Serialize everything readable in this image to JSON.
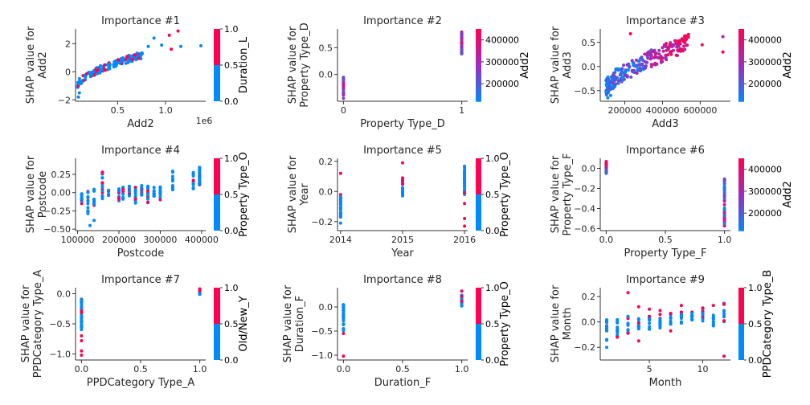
{
  "colors": {
    "low": "#008afb",
    "high": "#ff0052",
    "mid": "#9c2dbf"
  },
  "chart_data": [
    {
      "type": "scatter",
      "title": "Importance #1",
      "xlabel": "Add2",
      "ylabel": [
        "SHAP value for",
        "Add2"
      ],
      "xlim": [
        60000,
        1420000
      ],
      "ylim": [
        -2.1,
        3.05
      ],
      "xticks": [
        {
          "v": 500000,
          "t": "0.5"
        },
        {
          "v": 1000000,
          "t": "1.0"
        }
      ],
      "xoffset": "1e6",
      "yticks": [
        {
          "v": -2,
          "t": "−2"
        },
        {
          "v": 0,
          "t": "0"
        },
        {
          "v": 2,
          "t": "2"
        }
      ],
      "colorbar": {
        "label": "Duration_L",
        "mode": "binary",
        "ticks": [
          {
            "v": 0,
            "t": "0.0"
          },
          {
            "v": 0.5,
            "t": "0.5"
          },
          {
            "v": 1,
            "t": "1.0"
          }
        ],
        "range": [
          0,
          1
        ]
      },
      "gen": {
        "kind": "curve",
        "x0": 80000,
        "x1": 760000,
        "n": 180,
        "cmin": 0,
        "cmax": 1,
        "binary": true,
        "pHigh": 0.2
      },
      "points": [
        [
          820000,
          1.8,
          0
        ],
        [
          880000,
          2.4,
          0
        ],
        [
          960000,
          1.9,
          0
        ],
        [
          1040000,
          2.6,
          1
        ],
        [
          1060000,
          1.6,
          1
        ],
        [
          1130000,
          2.9,
          1
        ],
        [
          1160000,
          1.8,
          0
        ],
        [
          1370000,
          1.85,
          0
        ],
        [
          680000,
          1.2,
          1
        ],
        [
          600000,
          1.1,
          1
        ],
        [
          90000,
          -1.8,
          0
        ],
        [
          100000,
          -1.5,
          0
        ]
      ]
    },
    {
      "type": "scatter",
      "title": "Importance #2",
      "xlabel": "Property Type_D",
      "ylabel": [
        "SHAP value for",
        "Property Type_D"
      ],
      "xlim": [
        -0.05,
        1.05
      ],
      "ylim": [
        -0.5,
        0.85
      ],
      "xticks": [
        {
          "v": 0,
          "t": "0"
        },
        {
          "v": 1,
          "t": "1"
        }
      ],
      "yticks": [
        {
          "v": 0,
          "t": "0.0"
        },
        {
          "v": 0.5,
          "t": "0.5"
        }
      ],
      "colorbar": {
        "label": "Add2",
        "mode": "gradient",
        "ticks": [
          {
            "v": 200000,
            "t": "200000"
          },
          {
            "v": 300000,
            "t": "300000"
          },
          {
            "v": 400000,
            "t": "400000"
          }
        ],
        "range": [
          120000,
          450000
        ]
      },
      "gen": {
        "kind": "columns",
        "cols": [
          {
            "x": 0,
            "y0": -0.45,
            "y1": -0.05,
            "n": 30
          },
          {
            "x": 1,
            "y0": 0.35,
            "y1": 0.8,
            "n": 40
          }
        ],
        "cmin": 0.2,
        "cmax": 0.9
      },
      "points": []
    },
    {
      "type": "scatter",
      "title": "Importance #3",
      "xlabel": "Add3",
      "ylabel": [
        "SHAP value for",
        "Add3"
      ],
      "xlim": [
        70000,
        760000
      ],
      "ylim": [
        -0.72,
        0.78
      ],
      "xticks": [
        {
          "v": 200000,
          "t": "200000"
        },
        {
          "v": 400000,
          "t": "400000"
        },
        {
          "v": 600000,
          "t": "600000"
        }
      ],
      "yticks": [
        {
          "v": -0.5,
          "t": "−0.5"
        },
        {
          "v": 0,
          "t": "0.0"
        },
        {
          "v": 0.5,
          "t": "0.5"
        }
      ],
      "colorbar": {
        "label": "Add2",
        "mode": "gradient",
        "ticks": [
          {
            "v": 200000,
            "t": "200000"
          },
          {
            "v": 300000,
            "t": "300000"
          },
          {
            "v": 400000,
            "t": "400000"
          }
        ],
        "range": [
          120000,
          450000
        ]
      },
      "gen": {
        "kind": "cloud",
        "x0": 100000,
        "x1": 540000,
        "yA": -0.45,
        "yB": 0.5,
        "spread": 0.18,
        "n": 260,
        "cmin": 0,
        "cmax": 1
      },
      "points": [
        [
          110000,
          -0.65,
          0
        ],
        [
          125000,
          -0.6,
          0
        ],
        [
          230000,
          0.68,
          1
        ],
        [
          720000,
          0.62,
          0.6
        ],
        [
          720000,
          0.3,
          1
        ],
        [
          610000,
          0.45,
          0.9
        ]
      ]
    },
    {
      "type": "scatter",
      "title": "Importance #4",
      "xlabel": "Postcode",
      "ylabel": [
        "SHAP value for",
        "Postcode"
      ],
      "xlim": [
        95000,
        410000
      ],
      "ylim": [
        -0.52,
        0.47
      ],
      "xticks": [
        {
          "v": 100000,
          "t": "100000"
        },
        {
          "v": 200000,
          "t": "200000"
        },
        {
          "v": 300000,
          "t": "300000"
        },
        {
          "v": 400000,
          "t": "400000"
        }
      ],
      "yticks": [
        {
          "v": -0.5,
          "t": "−0.50"
        },
        {
          "v": -0.25,
          "t": "−0.25"
        },
        {
          "v": 0,
          "t": "0.00"
        },
        {
          "v": 0.25,
          "t": "0.25"
        }
      ],
      "colorbar": {
        "label": "Property Type_O",
        "mode": "binary",
        "ticks": [
          {
            "v": 0,
            "t": "0.0"
          },
          {
            "v": 0.5,
            "t": "0.5"
          },
          {
            "v": 1,
            "t": "1.0"
          }
        ],
        "range": [
          0,
          1
        ]
      },
      "gen": {
        "kind": "columns",
        "cols": [
          {
            "x": 110000,
            "y0": -0.15,
            "y1": 0.02,
            "n": 12
          },
          {
            "x": 125000,
            "y0": -0.35,
            "y1": 0.02,
            "n": 14
          },
          {
            "x": 140000,
            "y0": -0.2,
            "y1": 0.05,
            "n": 12
          },
          {
            "x": 160000,
            "y0": -0.1,
            "y1": 0.3,
            "n": 18
          },
          {
            "x": 175000,
            "y0": -0.05,
            "y1": 0.05,
            "n": 8
          },
          {
            "x": 200000,
            "y0": -0.15,
            "y1": 0.08,
            "n": 16
          },
          {
            "x": 210000,
            "y0": -0.1,
            "y1": 0.08,
            "n": 14
          },
          {
            "x": 225000,
            "y0": -0.05,
            "y1": 0.1,
            "n": 12
          },
          {
            "x": 240000,
            "y0": -0.15,
            "y1": 0.08,
            "n": 16
          },
          {
            "x": 255000,
            "y0": -0.05,
            "y1": 0.1,
            "n": 14
          },
          {
            "x": 270000,
            "y0": -0.15,
            "y1": 0.1,
            "n": 18
          },
          {
            "x": 285000,
            "y0": -0.05,
            "y1": 0.08,
            "n": 12
          },
          {
            "x": 300000,
            "y0": -0.1,
            "y1": 0.08,
            "n": 14
          },
          {
            "x": 330000,
            "y0": 0.0,
            "y1": 0.35,
            "n": 14
          },
          {
            "x": 380000,
            "y0": 0.05,
            "y1": 0.28,
            "n": 14
          },
          {
            "x": 395000,
            "y0": 0.1,
            "y1": 0.35,
            "n": 30
          }
        ],
        "cmin": 0,
        "cmax": 1,
        "binary": true,
        "pHigh": 0.2
      },
      "points": [
        [
          130000,
          -0.45,
          0
        ],
        [
          160000,
          0.28,
          1
        ],
        [
          140000,
          -0.38,
          0
        ]
      ]
    },
    {
      "type": "scatter",
      "title": "Importance #5",
      "xlabel": "Year",
      "ylabel": [
        "SHAP value for",
        "Year"
      ],
      "xlim": [
        2013.95,
        2016.05
      ],
      "ylim": [
        -0.26,
        0.22
      ],
      "xticks": [
        {
          "v": 2014,
          "t": "2014"
        },
        {
          "v": 2015,
          "t": "2015"
        },
        {
          "v": 2016,
          "t": "2016"
        }
      ],
      "yticks": [
        {
          "v": -0.2,
          "t": "−0.2"
        },
        {
          "v": 0,
          "t": "0.0"
        },
        {
          "v": 0.2,
          "t": "0.2"
        }
      ],
      "colorbar": {
        "label": "Property Type_O",
        "mode": "binary",
        "ticks": [
          {
            "v": 0,
            "t": "0.0"
          },
          {
            "v": 0.5,
            "t": "0.5"
          },
          {
            "v": 1,
            "t": "1.0"
          }
        ],
        "range": [
          0,
          1
        ]
      },
      "gen": {
        "kind": "columns",
        "cols": [
          {
            "x": 2014,
            "y0": -0.17,
            "y1": -0.02,
            "n": 30
          },
          {
            "x": 2015,
            "y0": -0.04,
            "y1": 0.08,
            "n": 25
          },
          {
            "x": 2016,
            "y0": -0.02,
            "y1": 0.17,
            "n": 40
          }
        ],
        "cmin": 0,
        "cmax": 1,
        "binary": true,
        "pHigh": 0.12
      },
      "points": [
        [
          2014,
          0.12,
          1
        ],
        [
          2015,
          0.19,
          1
        ],
        [
          2015,
          0.09,
          1
        ],
        [
          2016,
          -0.23,
          1
        ],
        [
          2016,
          -0.18,
          1
        ],
        [
          2016,
          -0.08,
          1
        ],
        [
          2014,
          -0.21,
          0
        ]
      ]
    },
    {
      "type": "scatter",
      "title": "Importance #6",
      "xlabel": "Property Type_F",
      "ylabel": [
        "SHAP value for",
        "Property Type_F"
      ],
      "xlim": [
        -0.05,
        1.05
      ],
      "ylim": [
        -0.62,
        0.1
      ],
      "xticks": [
        {
          "v": 0,
          "t": "0.0"
        },
        {
          "v": 0.5,
          "t": "0.5"
        },
        {
          "v": 1,
          "t": "1.0"
        }
      ],
      "yticks": [
        {
          "v": -0.6,
          "t": "−0.6"
        },
        {
          "v": -0.4,
          "t": "−0.4"
        },
        {
          "v": -0.2,
          "t": "−0.2"
        },
        {
          "v": 0,
          "t": "0.0"
        }
      ],
      "colorbar": {
        "label": "Add2",
        "mode": "gradient",
        "ticks": [
          {
            "v": 200000,
            "t": "200000"
          },
          {
            "v": 300000,
            "t": "300000"
          },
          {
            "v": 400000,
            "t": "400000"
          }
        ],
        "range": [
          120000,
          450000
        ]
      },
      "gen": {
        "kind": "columns",
        "cols": [
          {
            "x": 0,
            "y0": -0.05,
            "y1": 0.08,
            "n": 30
          },
          {
            "x": 1,
            "y0": -0.58,
            "y1": -0.1,
            "n": 45
          }
        ],
        "cmin": 0,
        "cmax": 1
      },
      "points": []
    },
    {
      "type": "scatter",
      "title": "Importance #7",
      "xlabel": "PPDCategory Type_A",
      "ylabel": [
        "SHAP value for",
        "PPDCategory Type_A"
      ],
      "xlim": [
        -0.05,
        1.05
      ],
      "ylim": [
        -1.1,
        0.1
      ],
      "xticks": [
        {
          "v": 0,
          "t": "0.0"
        },
        {
          "v": 0.5,
          "t": "0.5"
        },
        {
          "v": 1,
          "t": "1.0"
        }
      ],
      "yticks": [
        {
          "v": -1,
          "t": "−1.0"
        },
        {
          "v": -0.5,
          "t": "−0.5"
        },
        {
          "v": 0,
          "t": "0.0"
        }
      ],
      "colorbar": {
        "label": "Old/New_Y",
        "mode": "binary",
        "ticks": [
          {
            "v": 0,
            "t": "0.0"
          },
          {
            "v": 0.5,
            "t": "0.5"
          },
          {
            "v": 1,
            "t": "1.0"
          }
        ],
        "range": [
          0,
          1
        ]
      },
      "gen": {
        "kind": "columns",
        "cols": [
          {
            "x": 0,
            "y0": -0.6,
            "y1": -0.08,
            "n": 45
          },
          {
            "x": 1,
            "y0": -0.02,
            "y1": 0.08,
            "n": 14
          }
        ],
        "cmin": 0,
        "cmax": 1,
        "binary": true,
        "pHigh": 0.1
      },
      "points": [
        [
          0,
          -1.02,
          1
        ],
        [
          0,
          -0.95,
          1
        ],
        [
          0,
          -0.78,
          1
        ],
        [
          0,
          -0.7,
          1
        ],
        [
          1,
          0.08,
          1
        ],
        [
          1,
          0.05,
          1
        ]
      ]
    },
    {
      "type": "scatter",
      "title": "Importance #8",
      "xlabel": "Duration_F",
      "ylabel": [
        "SHAP value for",
        "Duration_F"
      ],
      "xlim": [
        -0.05,
        1.05
      ],
      "ylim": [
        -1.1,
        0.4
      ],
      "xticks": [
        {
          "v": 0,
          "t": "0.0"
        },
        {
          "v": 0.5,
          "t": "0.5"
        },
        {
          "v": 1,
          "t": "1.0"
        }
      ],
      "yticks": [
        {
          "v": -1,
          "t": "−1.0"
        },
        {
          "v": -0.5,
          "t": "−0.5"
        },
        {
          "v": 0,
          "t": "0.0"
        }
      ],
      "colorbar": {
        "label": "Property Type_O",
        "mode": "binary",
        "ticks": [
          {
            "v": 0,
            "t": "0.0"
          },
          {
            "v": 0.5,
            "t": "0.5"
          },
          {
            "v": 1,
            "t": "1.0"
          }
        ],
        "range": [
          0,
          1
        ]
      },
      "gen": {
        "kind": "columns",
        "cols": [
          {
            "x": 0,
            "y0": -0.5,
            "y1": 0.05,
            "n": 40
          },
          {
            "x": 1,
            "y0": 0.0,
            "y1": 0.25,
            "n": 20
          }
        ],
        "cmin": 0,
        "cmax": 1,
        "binary": true,
        "pHigh": 0.05
      },
      "points": [
        [
          0,
          -1.02,
          1
        ],
        [
          0,
          -0.55,
          1
        ],
        [
          1,
          0.33,
          1
        ],
        [
          1,
          0.22,
          1
        ],
        [
          1,
          0.12,
          1
        ]
      ]
    },
    {
      "type": "scatter",
      "title": "Importance #9",
      "xlabel": "Month",
      "ylabel": [
        "SHAP value for",
        "Month"
      ],
      "xlim": [
        0.4,
        12.6
      ],
      "ylim": [
        -0.3,
        0.27
      ],
      "xticks": [
        {
          "v": 5,
          "t": "5"
        },
        {
          "v": 10,
          "t": "10"
        }
      ],
      "yticks": [
        {
          "v": -0.2,
          "t": "−0.2"
        },
        {
          "v": 0,
          "t": "0.0"
        },
        {
          "v": 0.2,
          "t": "0.2"
        }
      ],
      "colorbar": {
        "label": "PPDCategory Type_B",
        "mode": "binary",
        "ticks": [
          {
            "v": 0,
            "t": "0.0"
          },
          {
            "v": 0.5,
            "t": "0.5"
          },
          {
            "v": 1,
            "t": "1.0"
          }
        ],
        "range": [
          0,
          1
        ]
      },
      "gen": {
        "kind": "columns",
        "cols": [
          {
            "x": 1,
            "y0": -0.15,
            "y1": 0.03,
            "n": 14
          },
          {
            "x": 2,
            "y0": -0.12,
            "y1": 0.02,
            "n": 14
          },
          {
            "x": 3,
            "y0": -0.1,
            "y1": 0.05,
            "n": 14
          },
          {
            "x": 4,
            "y0": -0.08,
            "y1": 0.03,
            "n": 14
          },
          {
            "x": 5,
            "y0": -0.06,
            "y1": 0.05,
            "n": 14
          },
          {
            "x": 6,
            "y0": -0.05,
            "y1": 0.06,
            "n": 14
          },
          {
            "x": 7,
            "y0": -0.02,
            "y1": 0.07,
            "n": 14
          },
          {
            "x": 8,
            "y0": -0.01,
            "y1": 0.08,
            "n": 14
          },
          {
            "x": 9,
            "y0": 0.0,
            "y1": 0.08,
            "n": 14
          },
          {
            "x": 10,
            "y0": 0.0,
            "y1": 0.1,
            "n": 14
          },
          {
            "x": 11,
            "y0": -0.05,
            "y1": 0.08,
            "n": 14
          },
          {
            "x": 12,
            "y0": 0.0,
            "y1": 0.15,
            "n": 14
          }
        ],
        "cmin": 0,
        "cmax": 1,
        "binary": true,
        "pHigh": 0.15
      },
      "points": [
        [
          3,
          0.23,
          1
        ],
        [
          1,
          -0.2,
          0
        ],
        [
          4,
          0.12,
          1
        ],
        [
          4,
          -0.15,
          1
        ],
        [
          5,
          0.1,
          1
        ],
        [
          6,
          0.09,
          1
        ],
        [
          7,
          -0.07,
          1
        ],
        [
          8,
          0.13,
          1
        ],
        [
          10,
          0.11,
          1
        ],
        [
          11,
          0.13,
          1
        ],
        [
          12,
          -0.27,
          1
        ],
        [
          2,
          -0.12,
          1
        ]
      ]
    }
  ]
}
